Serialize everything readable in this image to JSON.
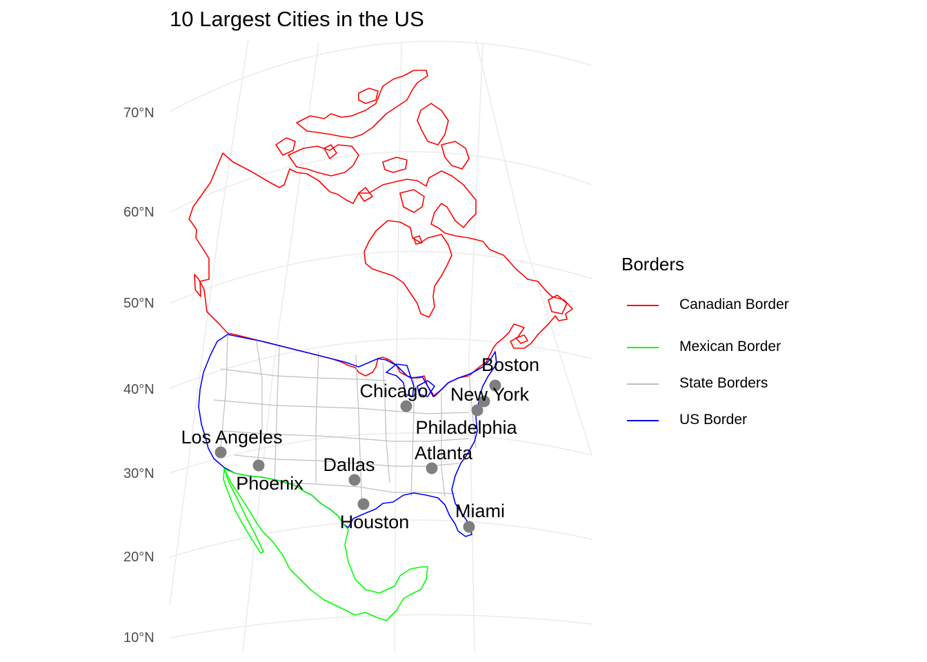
{
  "title": "10 Largest Cities in the US",
  "latitude_labels": [
    "70°N",
    "60°N",
    "50°N",
    "40°N",
    "30°N",
    "20°N",
    "10°N"
  ],
  "legend": {
    "title": "Borders",
    "items": [
      {
        "label": "Canadian Border",
        "color": "#ff0000"
      },
      {
        "label": "Mexican Border",
        "color": "#00ff00"
      },
      {
        "label": "State Borders",
        "color": "#bebebe"
      },
      {
        "label": "US Border",
        "color": "#0000ff"
      }
    ]
  },
  "cities": [
    {
      "name": "New York",
      "lat": 40.7,
      "lon": -74.0
    },
    {
      "name": "Los Angeles",
      "lat": 34.1,
      "lon": -118.2
    },
    {
      "name": "Chicago",
      "lat": 41.9,
      "lon": -87.6
    },
    {
      "name": "Houston",
      "lat": 29.8,
      "lon": -95.4
    },
    {
      "name": "Phoenix",
      "lat": 33.4,
      "lon": -112.1
    },
    {
      "name": "Philadelphia",
      "lat": 40.0,
      "lon": -75.2
    },
    {
      "name": "Dallas",
      "lat": 32.8,
      "lon": -96.8
    },
    {
      "name": "Atlanta",
      "lat": 33.7,
      "lon": -84.4
    },
    {
      "name": "Miami",
      "lat": 25.8,
      "lon": -80.2
    },
    {
      "name": "Boston",
      "lat": 42.4,
      "lon": -71.1
    }
  ],
  "point_color": "#7f7f7f",
  "graticule_color": "#ebebeb"
}
